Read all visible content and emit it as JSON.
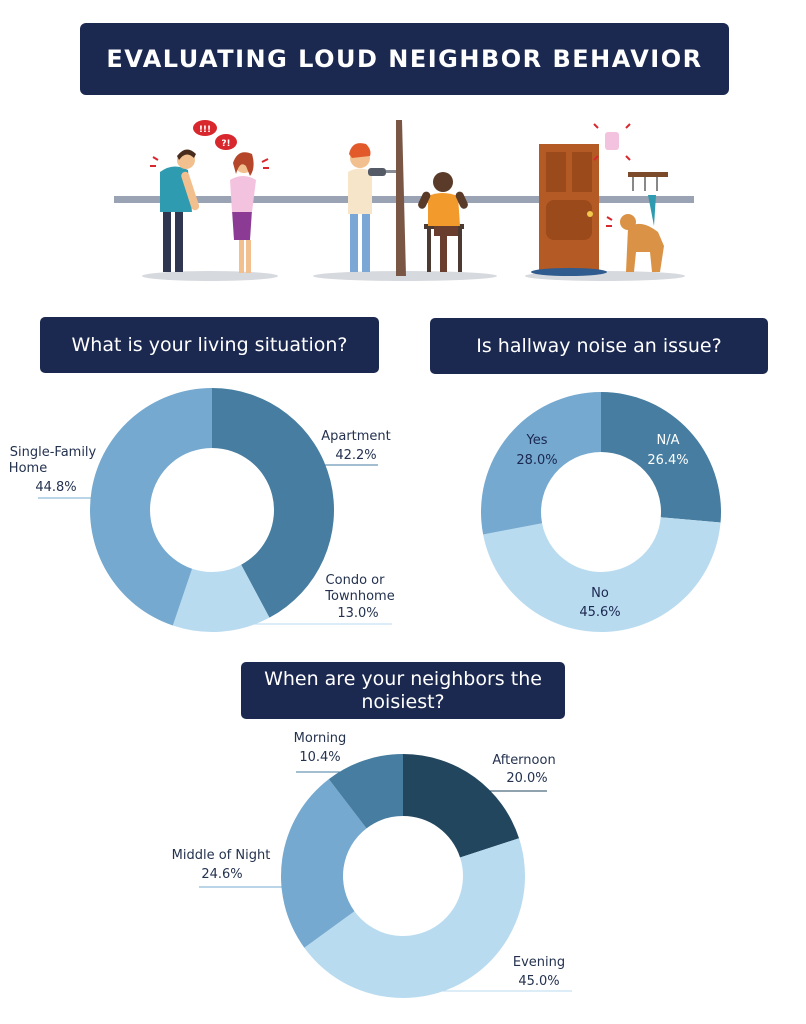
{
  "title": "EVALUATING LOUD NEIGHBOR BEHAVIOR",
  "illustration": {
    "speech_bubble_1": "!!!",
    "speech_bubble_2": "?!"
  },
  "chart_data": [
    {
      "type": "pie",
      "title": "What is your living situation?",
      "slices": [
        {
          "label": "Apartment",
          "value": 42.2,
          "display": "42.2%",
          "color": "#467da0"
        },
        {
          "label": "Condo or Townhome",
          "value": 13.0,
          "display": "13.0%",
          "color": "#b9dbf0"
        },
        {
          "label": "Single-Family Home",
          "value": 44.8,
          "display": "44.8%",
          "color": "#75a9d0"
        }
      ]
    },
    {
      "type": "pie",
      "title": "Is hallway noise an issue?",
      "slices": [
        {
          "label": "N/A",
          "value": 26.4,
          "display": "26.4%",
          "color": "#467da0"
        },
        {
          "label": "No",
          "value": 45.6,
          "display": "45.6%",
          "color": "#b9dbf0"
        },
        {
          "label": "Yes",
          "value": 28.0,
          "display": "28.0%",
          "color": "#75a9d0"
        }
      ]
    },
    {
      "type": "pie",
      "title": "When are your neighbors the noisiest?",
      "slices": [
        {
          "label": "Afternoon",
          "value": 20.0,
          "display": "20.0%",
          "color": "#22465e"
        },
        {
          "label": "Evening",
          "value": 45.0,
          "display": "45.0%",
          "color": "#b9dbf0"
        },
        {
          "label": "Middle of Night",
          "value": 24.6,
          "display": "24.6%",
          "color": "#75a9d0"
        },
        {
          "label": "Morning",
          "value": 10.4,
          "display": "10.4%",
          "color": "#467da0"
        }
      ]
    }
  ]
}
